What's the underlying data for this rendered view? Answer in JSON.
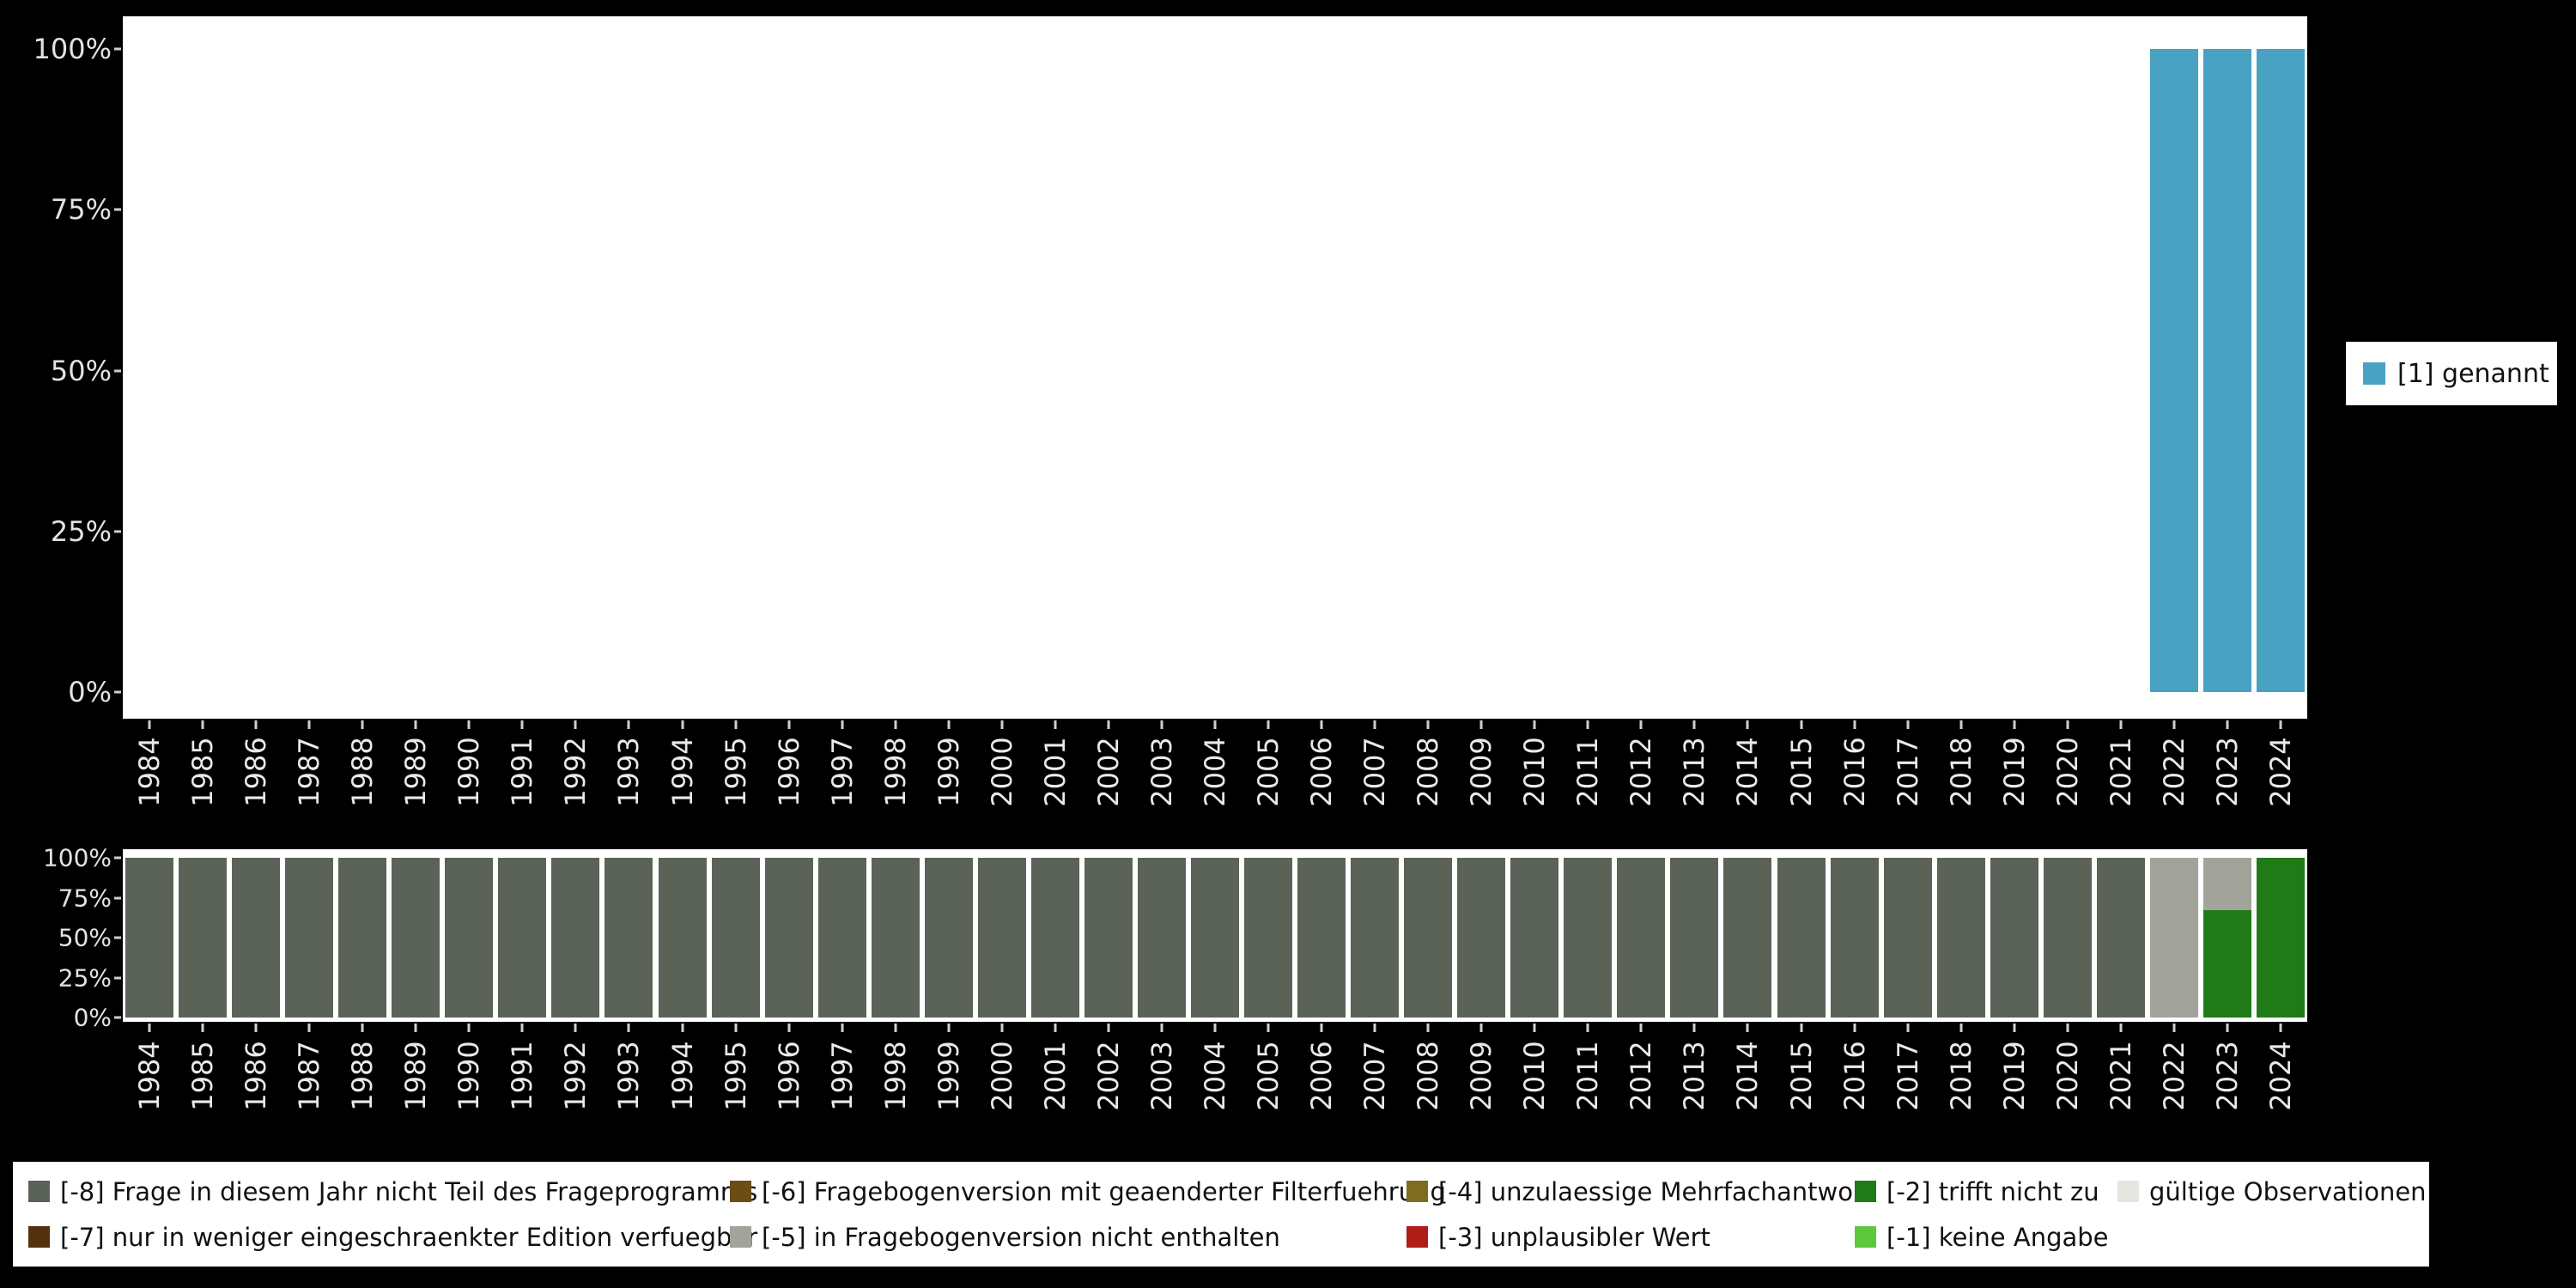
{
  "page": {
    "background": "#000000",
    "panel_background": "#ffffff",
    "axis_label_color": "#e8e8e8"
  },
  "chart_data": [
    {
      "id": "valid-values",
      "type": "bar",
      "stacked": true,
      "unit": "percent",
      "title": "",
      "xlabel": "",
      "ylabel": "",
      "ylim": [
        0,
        100
      ],
      "grid": false,
      "legend_position": "right",
      "y_ticks": [
        "100%",
        "75%",
        "50%",
        "25%",
        "0%"
      ],
      "categories": [
        "1984",
        "1985",
        "1986",
        "1987",
        "1988",
        "1989",
        "1990",
        "1991",
        "1992",
        "1993",
        "1994",
        "1995",
        "1996",
        "1997",
        "1998",
        "1999",
        "2000",
        "2001",
        "2002",
        "2003",
        "2004",
        "2005",
        "2006",
        "2007",
        "2008",
        "2009",
        "2010",
        "2011",
        "2012",
        "2013",
        "2014",
        "2015",
        "2016",
        "2017",
        "2018",
        "2019",
        "2020",
        "2021",
        "2022",
        "2023",
        "2024"
      ],
      "series": [
        {
          "name": "[1] genannt",
          "color": "#4aa2c2",
          "values": [
            0,
            0,
            0,
            0,
            0,
            0,
            0,
            0,
            0,
            0,
            0,
            0,
            0,
            0,
            0,
            0,
            0,
            0,
            0,
            0,
            0,
            0,
            0,
            0,
            0,
            0,
            0,
            0,
            0,
            0,
            0,
            0,
            0,
            0,
            0,
            0,
            0,
            0,
            100,
            100,
            100
          ]
        }
      ]
    },
    {
      "id": "missing-values",
      "type": "bar",
      "stacked": true,
      "unit": "percent",
      "title": "",
      "xlabel": "",
      "ylabel": "",
      "ylim": [
        0,
        100
      ],
      "grid": false,
      "legend_position": "bottom",
      "y_ticks": [
        "100%",
        "75%",
        "50%",
        "25%",
        "0%"
      ],
      "categories": [
        "1984",
        "1985",
        "1986",
        "1987",
        "1988",
        "1989",
        "1990",
        "1991",
        "1992",
        "1993",
        "1994",
        "1995",
        "1996",
        "1997",
        "1998",
        "1999",
        "2000",
        "2001",
        "2002",
        "2003",
        "2004",
        "2005",
        "2006",
        "2007",
        "2008",
        "2009",
        "2010",
        "2011",
        "2012",
        "2013",
        "2014",
        "2015",
        "2016",
        "2017",
        "2018",
        "2019",
        "2020",
        "2021",
        "2022",
        "2023",
        "2024"
      ],
      "series": [
        {
          "name": "[-8] Frage in diesem Jahr nicht Teil des Frageprogramms",
          "color": "#5b6358",
          "values": [
            100,
            100,
            100,
            100,
            100,
            100,
            100,
            100,
            100,
            100,
            100,
            100,
            100,
            100,
            100,
            100,
            100,
            100,
            100,
            100,
            100,
            100,
            100,
            100,
            100,
            100,
            100,
            100,
            100,
            100,
            100,
            100,
            100,
            100,
            100,
            100,
            100,
            100,
            0,
            0,
            0
          ]
        },
        {
          "name": "[-2] trifft nicht zu",
          "color": "#207a18",
          "values": [
            0,
            0,
            0,
            0,
            0,
            0,
            0,
            0,
            0,
            0,
            0,
            0,
            0,
            0,
            0,
            0,
            0,
            0,
            0,
            0,
            0,
            0,
            0,
            0,
            0,
            0,
            0,
            0,
            0,
            0,
            0,
            0,
            0,
            0,
            0,
            0,
            0,
            0,
            0,
            67,
            100
          ]
        },
        {
          "name": "[-5] in Fragebogenversion nicht enthalten",
          "color": "#a2a39b",
          "values": [
            0,
            0,
            0,
            0,
            0,
            0,
            0,
            0,
            0,
            0,
            0,
            0,
            0,
            0,
            0,
            0,
            0,
            0,
            0,
            0,
            0,
            0,
            0,
            0,
            0,
            0,
            0,
            0,
            0,
            0,
            0,
            0,
            0,
            0,
            0,
            0,
            0,
            0,
            100,
            33,
            0
          ]
        }
      ]
    }
  ],
  "missing_legend": {
    "items": [
      {
        "label": "[-8] Frage in diesem Jahr nicht Teil des Frageprogramms",
        "color": "#5b6358"
      },
      {
        "label": "[-7] nur in weniger eingeschraenkter Edition verfuegbar",
        "color": "#53300e"
      },
      {
        "label": "[-6] Fragebogenversion mit geaenderter Filterfuehrung",
        "color": "#6b4e16"
      },
      {
        "label": "[-5] in Fragebogenversion nicht enthalten",
        "color": "#a2a39b"
      },
      {
        "label": "[-4] unzulaessige Mehrfachantwort",
        "color": "#7e6d20"
      },
      {
        "label": "[-3] unplausibler Wert",
        "color": "#b01c18"
      },
      {
        "label": "[-2] trifft nicht zu",
        "color": "#207a18"
      },
      {
        "label": "[-1] keine Angabe",
        "color": "#5dc83e"
      },
      {
        "label": "gültige Observationen",
        "color": "#e6e6e0"
      }
    ]
  }
}
